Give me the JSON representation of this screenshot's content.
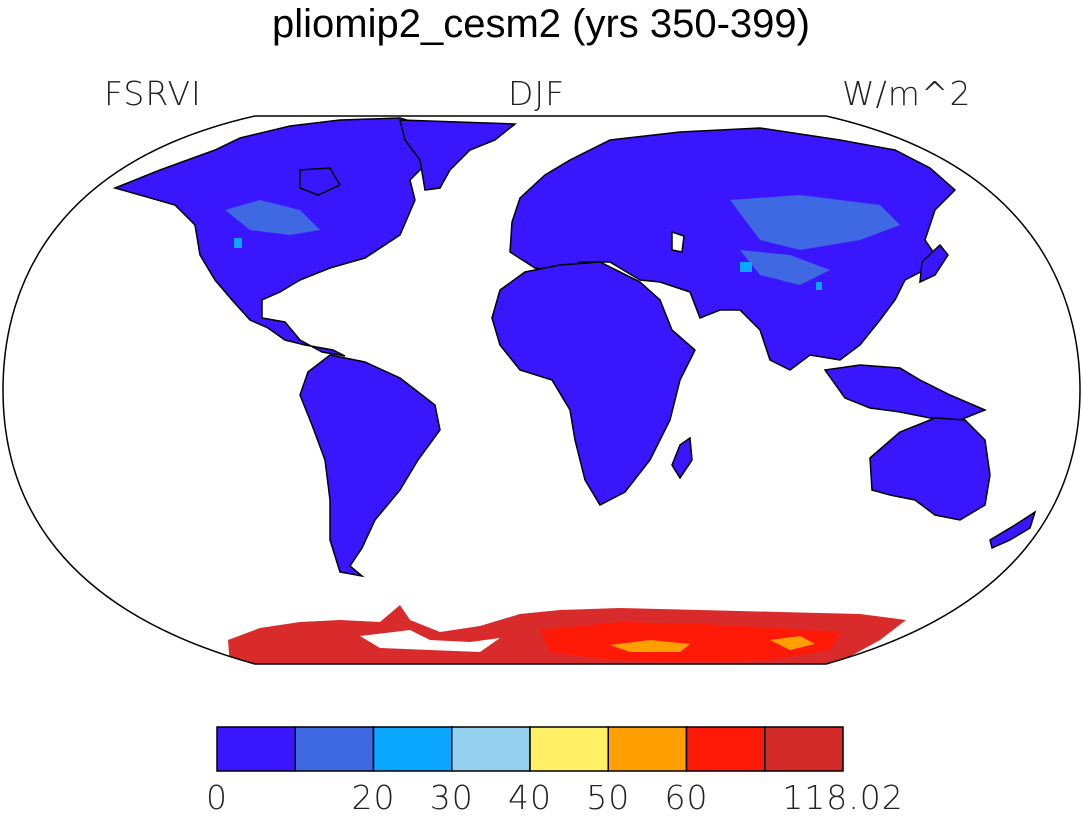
{
  "map": {
    "title": "pliomip2_cesm2 (yrs 350-399)",
    "variable": "FSRVI",
    "season": "DJF",
    "units": "W/m^2",
    "projection": "Robinson",
    "land_base_color": "#3a16ff",
    "antarctica_color": "#d92b2b",
    "colorbar": {
      "colors": [
        "#3a16ff",
        "#3f68e3",
        "#0aa6ff",
        "#94cfee",
        "#fff066",
        "#ffa000",
        "#ff1a08",
        "#d32a2a"
      ],
      "tick_labels": [
        "0",
        "20",
        "30",
        "40",
        "50",
        "60",
        "118.02"
      ],
      "tick_boundary_index": [
        0,
        2,
        3,
        4,
        5,
        6,
        8
      ]
    }
  }
}
